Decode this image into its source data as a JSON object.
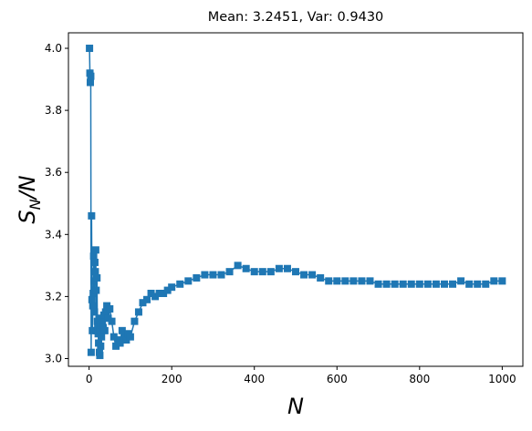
{
  "chart_data": {
    "type": "line",
    "title": "Mean: 3.2451, Var: 0.9430",
    "xlabel": "N",
    "ylabel_parts": {
      "s": "S",
      "sub": "N",
      "rest": "/N"
    },
    "xlim": [
      -50,
      1050
    ],
    "ylim": [
      2.975,
      4.05
    ],
    "xticks": [
      0,
      200,
      400,
      600,
      800,
      1000
    ],
    "yticks": [
      3.0,
      3.2,
      3.4,
      3.6,
      3.8,
      4.0
    ],
    "xtick_labels": [
      "0",
      "200",
      "400",
      "600",
      "800",
      "1000"
    ],
    "ytick_labels": [
      "3.0",
      "3.2",
      "3.4",
      "3.6",
      "3.8",
      "4.0"
    ],
    "marker": "square",
    "color": "#1f77b4",
    "grid": false,
    "series": [
      {
        "x": [
          1,
          2,
          3,
          4,
          5,
          6,
          7,
          8,
          9,
          10,
          11,
          12,
          13,
          14,
          15,
          16,
          17,
          18,
          19,
          20,
          21,
          22,
          23,
          24,
          25,
          26,
          27,
          28,
          29,
          30,
          32,
          34,
          36,
          38,
          40,
          43,
          46,
          50,
          55,
          60,
          65,
          70,
          75,
          80,
          85,
          90,
          95,
          100,
          110,
          120,
          130,
          140,
          150,
          160,
          170,
          180,
          190,
          200,
          220,
          240,
          260,
          280,
          300,
          320,
          340,
          360,
          380,
          400,
          420,
          440,
          460,
          480,
          500,
          520,
          540,
          560,
          580,
          600,
          620,
          640,
          660,
          680,
          700,
          720,
          740,
          760,
          780,
          800,
          820,
          840,
          860,
          880,
          900,
          920,
          940,
          960,
          980,
          1000
        ],
        "y": [
          4.0,
          3.92,
          3.89,
          3.91,
          3.02,
          3.46,
          3.19,
          3.09,
          3.17,
          3.21,
          3.33,
          3.25,
          3.15,
          3.31,
          3.28,
          3.35,
          3.22,
          3.09,
          3.26,
          3.12,
          3.1,
          3.08,
          3.05,
          3.13,
          3.02,
          3.01,
          3.09,
          3.04,
          3.11,
          3.07,
          3.12,
          3.1,
          3.14,
          3.09,
          3.15,
          3.17,
          3.13,
          3.16,
          3.12,
          3.07,
          3.04,
          3.06,
          3.05,
          3.09,
          3.07,
          3.06,
          3.08,
          3.07,
          3.12,
          3.15,
          3.18,
          3.19,
          3.21,
          3.2,
          3.21,
          3.21,
          3.22,
          3.23,
          3.24,
          3.25,
          3.26,
          3.27,
          3.27,
          3.27,
          3.28,
          3.3,
          3.29,
          3.28,
          3.28,
          3.28,
          3.29,
          3.29,
          3.28,
          3.27,
          3.27,
          3.26,
          3.25,
          3.25,
          3.25,
          3.25,
          3.25,
          3.25,
          3.24,
          3.24,
          3.24,
          3.24,
          3.24,
          3.24,
          3.24,
          3.24,
          3.24,
          3.24,
          3.25,
          3.24,
          3.24,
          3.24,
          3.25,
          3.25
        ]
      }
    ]
  }
}
